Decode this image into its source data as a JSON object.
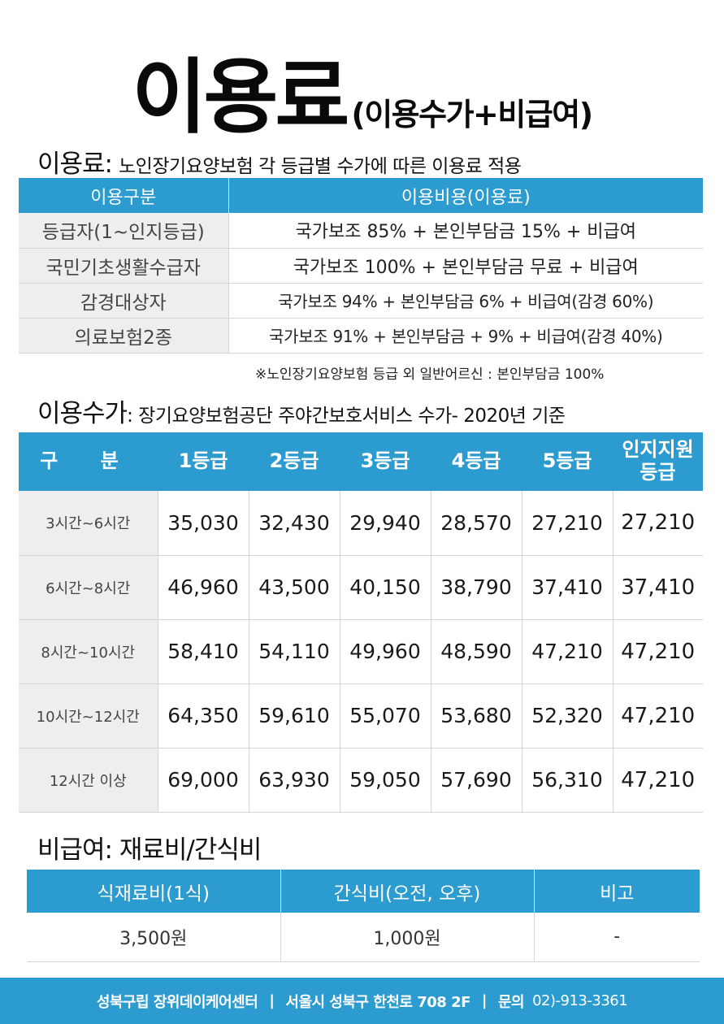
{
  "title": {
    "main": "이용료",
    "sub": "(이용수가+비급여)"
  },
  "fee_section": {
    "heading": "이용료:",
    "subheading": "노인장기요양보험 각 등급별 수가에 따른 이용료 적용",
    "columns": [
      "이용구분",
      "이용비용(이용료)"
    ],
    "rows": [
      {
        "label": "등급자(1~인지등급)",
        "value": "국가보조 85% + 본인부담금 15% + 비급여"
      },
      {
        "label": "국민기초생활수급자",
        "value": "국가보조 100% + 본인부담금 무료 + 비급여"
      },
      {
        "label": "감경대상자",
        "value": "국가보조 94% + 본인부담금 6% + 비급여(감경 60%)"
      },
      {
        "label": "의료보험2종",
        "value": "국가보조 91% + 본인부담금 + 9% + 비급여(감경 40%)"
      }
    ],
    "note": "※노인장기요양보험 등급 외 일반어르신 : 본인부담금 100%"
  },
  "rate_section": {
    "heading": "이용수가",
    "subheading": ": 장기요양보험공단 주야간보호서비스 수가- 2020년 기준",
    "columns": [
      "구 분",
      "1등급",
      "2등급",
      "3등급",
      "4등급",
      "5등급",
      "인지지원\n등급"
    ],
    "rows": [
      {
        "label": "3시간~6시간",
        "values": [
          "35,030",
          "32,430",
          "29,940",
          "28,570",
          "27,210",
          "27,210"
        ]
      },
      {
        "label": "6시간~8시간",
        "values": [
          "46,960",
          "43,500",
          "40,150",
          "38,790",
          "37,410",
          "37,410"
        ]
      },
      {
        "label": "8시간~10시간",
        "values": [
          "58,410",
          "54,110",
          "49,960",
          "48,590",
          "47,210",
          "47,210"
        ]
      },
      {
        "label": "10시간~12시간",
        "values": [
          "64,350",
          "59,610",
          "55,070",
          "53,680",
          "52,320",
          "47,210"
        ]
      },
      {
        "label": "12시간 이상",
        "values": [
          "69,000",
          "63,930",
          "59,050",
          "57,690",
          "56,310",
          "47,210"
        ]
      }
    ]
  },
  "meal_section": {
    "heading": "비급여: 재료비/간식비",
    "columns": [
      "식재료비(1식)",
      "간식비(오전, 오후)",
      "비고"
    ],
    "row": [
      "3,500원",
      "1,000원",
      "-"
    ]
  },
  "footer": {
    "center": "성북구립 장위데이케어센터",
    "sep": "|",
    "address": "서울시 성북구 한천로 708 2F",
    "contact_label": "문의",
    "phone": "02)-913-3361"
  },
  "colors": {
    "accent": "#2c9bd0",
    "label_bg": "#eeeeee"
  }
}
